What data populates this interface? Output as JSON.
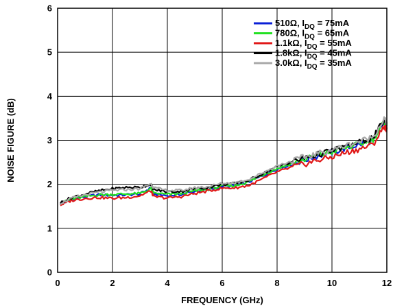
{
  "chart_data": {
    "type": "line",
    "xlabel": "FREQUENCY (GHz)",
    "ylabel": "NOISE FIGURE (dB)",
    "xlim": [
      0,
      12
    ],
    "ylim": [
      0,
      6
    ],
    "xticks": [
      0,
      2,
      4,
      6,
      8,
      10,
      12
    ],
    "yticks": [
      0,
      1,
      2,
      3,
      4,
      5,
      6
    ],
    "grid": true,
    "legend_position": "top-right",
    "x": [
      0.1,
      0.5,
      1.0,
      1.5,
      2.0,
      2.5,
      3.0,
      3.4,
      3.5,
      4.0,
      4.5,
      5.0,
      5.5,
      6.0,
      6.5,
      7.0,
      7.5,
      8.0,
      8.5,
      9.0,
      9.5,
      10.0,
      10.5,
      11.0,
      11.5,
      11.9,
      12.0
    ],
    "series": [
      {
        "name_main": "510Ω, I",
        "name_sub": "DQ",
        "name_tail": " = 75mA",
        "color": "#0a1fd6",
        "values": [
          1.55,
          1.65,
          1.72,
          1.76,
          1.75,
          1.76,
          1.78,
          1.92,
          1.78,
          1.74,
          1.77,
          1.84,
          1.88,
          1.95,
          1.97,
          2.06,
          2.2,
          2.35,
          2.45,
          2.55,
          2.65,
          2.72,
          2.82,
          2.9,
          3.0,
          3.4,
          3.32
        ]
      },
      {
        "name_main": "780Ω, I",
        "name_sub": "DQ",
        "name_tail": " = 65mA",
        "color": "#22e022",
        "values": [
          1.56,
          1.66,
          1.72,
          1.76,
          1.77,
          1.78,
          1.79,
          1.9,
          1.8,
          1.77,
          1.79,
          1.85,
          1.89,
          1.96,
          1.97,
          2.07,
          2.22,
          2.36,
          2.46,
          2.56,
          2.66,
          2.73,
          2.83,
          2.91,
          3.02,
          3.42,
          3.35
        ]
      },
      {
        "name_main": "1.1kΩ, I",
        "name_sub": "DQ",
        "name_tail": " = 55mA",
        "color": "#e01818",
        "values": [
          1.53,
          1.63,
          1.68,
          1.7,
          1.68,
          1.7,
          1.74,
          1.85,
          1.72,
          1.69,
          1.72,
          1.79,
          1.85,
          1.91,
          1.92,
          1.98,
          2.13,
          2.28,
          2.38,
          2.46,
          2.55,
          2.62,
          2.72,
          2.8,
          2.9,
          3.32,
          3.25
        ]
      },
      {
        "name_main": "1.8kΩ, I",
        "name_sub": "DQ",
        "name_tail": " = 45mA",
        "color": "#000000",
        "values": [
          1.58,
          1.7,
          1.78,
          1.85,
          1.9,
          1.93,
          1.93,
          2.0,
          1.88,
          1.83,
          1.84,
          1.9,
          1.93,
          2.0,
          2.02,
          2.1,
          2.25,
          2.4,
          2.5,
          2.6,
          2.68,
          2.76,
          2.86,
          2.95,
          3.06,
          3.45,
          3.38
        ]
      },
      {
        "name_main": "3.0kΩ, I",
        "name_sub": "DQ",
        "name_tail": " = 35mA",
        "color": "#a8a8a8",
        "values": [
          1.57,
          1.68,
          1.76,
          1.82,
          1.86,
          1.88,
          1.9,
          2.02,
          1.92,
          1.86,
          1.86,
          1.92,
          1.95,
          2.02,
          2.04,
          2.12,
          2.27,
          2.42,
          2.52,
          2.62,
          2.7,
          2.78,
          2.88,
          2.97,
          3.08,
          3.48,
          3.4
        ]
      }
    ]
  }
}
